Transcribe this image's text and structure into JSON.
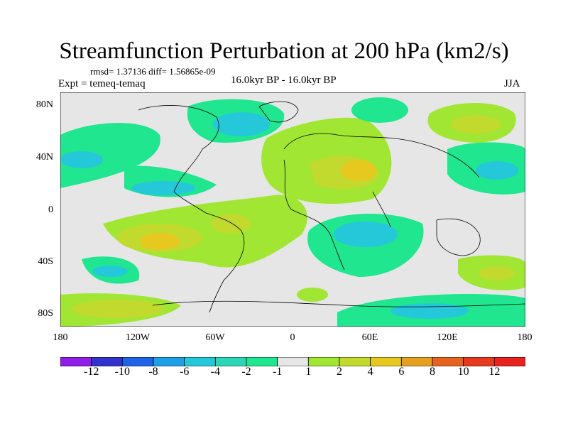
{
  "header": {
    "title": "Streamfunction Perturbation at 200 hPa (km2/s)",
    "stats": "rmsd= 1.37136 diff= 1.56865e-09",
    "experiment": "Expt = temeq-temaq",
    "period": "16.0kyr BP - 16.0kyr BP",
    "season": "JJA"
  },
  "axes": {
    "y_ticks": [
      "80N",
      "40N",
      "0",
      "40S",
      "80S"
    ],
    "x_ticks": [
      "180",
      "120W",
      "60W",
      "0",
      "60E",
      "120E",
      "180"
    ]
  },
  "colorbar": {
    "labels": [
      "-12",
      "-10",
      "-8",
      "-6",
      "-4",
      "-2",
      "-1",
      "1",
      "2",
      "4",
      "6",
      "8",
      "10",
      "12"
    ],
    "colors": [
      "#8f1fe6",
      "#3333cc",
      "#1f63e6",
      "#1fa0e6",
      "#25c8d9",
      "#2ed6b8",
      "#1fe68f",
      "#e6e6e6",
      "#a0e632",
      "#c2d92e",
      "#e6c81f",
      "#e6a01f",
      "#e6631f",
      "#e63a1f",
      "#e6231f"
    ]
  },
  "chart_data": {
    "type": "heatmap",
    "title": "Streamfunction Perturbation at 200 hPa (km2/s)",
    "x_range": [
      "180",
      "180"
    ],
    "y_range": [
      "80S",
      "80N"
    ],
    "levels": [
      -12,
      -10,
      -8,
      -6,
      -4,
      -2,
      -1,
      1,
      2,
      4,
      6,
      8,
      10,
      12
    ],
    "features": [
      {
        "region": "North America / Greenland, ~70N 100W",
        "level": "-4 to -2"
      },
      {
        "region": "North Pacific ~35N 160W",
        "level": "-4 to -2"
      },
      {
        "region": "East Pacific ~20N 120W",
        "level": "-4 to -2"
      },
      {
        "region": "North Atlantic / Europe ~50N 0",
        "level": "1 to 4"
      },
      {
        "region": "Middle East ~35N 50E",
        "level": "4 to 6"
      },
      {
        "region": "Arctic Siberia ~70N 120E",
        "level": "4 to 6"
      },
      {
        "region": "NW Pacific ~35N 150E",
        "level": "-4 to -2"
      },
      {
        "region": "Tropical Atlantic ~10S 40W",
        "level": "4 to 6"
      },
      {
        "region": "SE Pacific ~25S 110W",
        "level": "6 to 8"
      },
      {
        "region": "Southern Indian Ocean ~20S 60E",
        "level": "-6 to -4"
      },
      {
        "region": "Antarctic coast ~75S 60E",
        "level": "-6 to -4"
      },
      {
        "region": "Southern Ocean ~75S 150W",
        "level": "2 to 6"
      },
      {
        "region": "South of Australia ~50S 150E",
        "level": "2 to 4"
      }
    ]
  }
}
